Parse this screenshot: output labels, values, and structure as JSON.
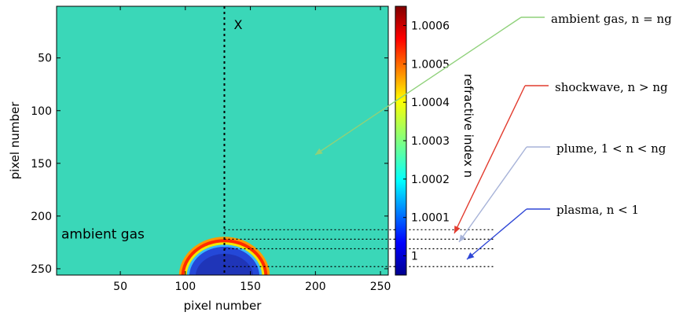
{
  "chart_data": {
    "type": "heatmap",
    "title": "",
    "xlabel": "pixel number",
    "ylabel": "pixel number",
    "xlim": [
      1,
      256
    ],
    "ylim": [
      1,
      256
    ],
    "y_reversed": true,
    "x_ticks": [
      50,
      100,
      150,
      200,
      250
    ],
    "y_ticks": [
      50,
      100,
      150,
      200,
      250
    ],
    "x_tick_labels": [
      "50",
      "100",
      "150",
      "200",
      "250"
    ],
    "y_tick_labels": [
      "50",
      "100",
      "150",
      "200",
      "250"
    ],
    "background_value": 1.00022,
    "structures": [
      {
        "name": "shockwave",
        "type": "semicircle-ring",
        "center_x": 130,
        "base_y": 256,
        "outer_radius": 35,
        "peak_value": 1.0006
      },
      {
        "name": "plasma",
        "type": "semicircle-core",
        "center_x": 130,
        "base_y": 256,
        "radius": 27,
        "value": 1.0
      }
    ],
    "colorbar": {
      "label": "refractive index n",
      "min": 0.99995,
      "max": 1.00065,
      "ticks": [
        1,
        1.0001,
        1.0002,
        1.0003,
        1.0004,
        1.0005,
        1.0006
      ],
      "tick_labels": [
        "1",
        "1.0001",
        "1.0002",
        "1.0003",
        "1.0004",
        "1.0005",
        "1.0006"
      ],
      "colormap": "jet"
    },
    "vertical_line": {
      "x": 130,
      "label": "X"
    },
    "dotted_levels": [
      213,
      222,
      231,
      248
    ],
    "inside_label": "ambient gas",
    "annotations": [
      {
        "text": "ambient gas,  n = ng",
        "arrow_color": "#8fd17a"
      },
      {
        "text": "shockwave,  n > ng",
        "arrow_color": "#e23b2e"
      },
      {
        "text": "plume,  1 < n < ng",
        "arrow_color": "#a7b3d8"
      },
      {
        "text": "plasma,  n < 1",
        "arrow_color": "#2e46d6"
      }
    ]
  }
}
